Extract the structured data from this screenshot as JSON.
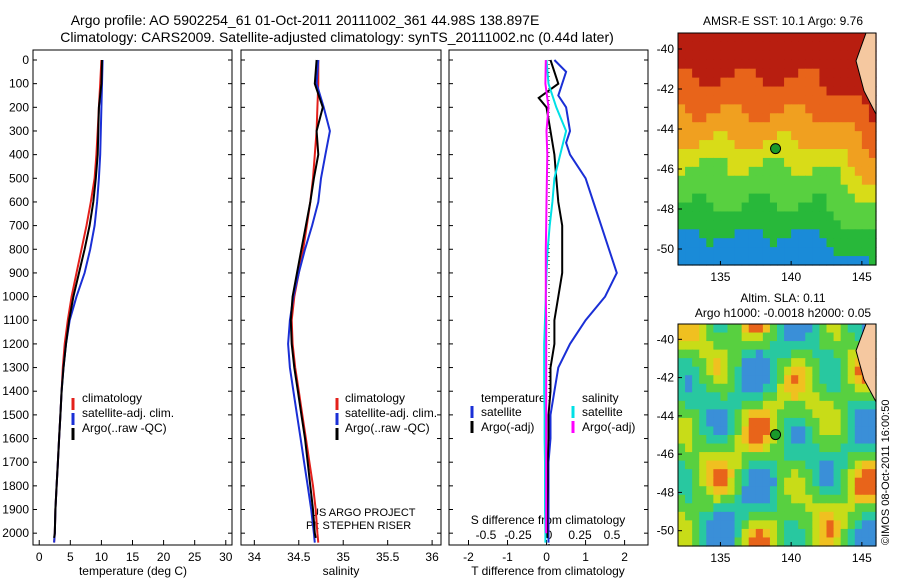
{
  "header": {
    "line1": "Argo profile: AO 5902254_61 01-Oct-2011 20111002_361 44.98S 138.897E",
    "line2": "Climatology: CARS2009. Satellite-adjusted climatology: synTS_20111002.nc (0.44d later)"
  },
  "colors": {
    "climatology": "#e3201b",
    "satellite": "#1a2fd6",
    "argo": "#000000",
    "magenta": "#ff00ff",
    "cyan": "#00e0e6"
  },
  "chart_data": [
    {
      "type": "line",
      "id": "temperature",
      "xlabel": "temperature (deg C)",
      "xlim": [
        -1,
        31
      ],
      "xticks": [
        0,
        5,
        10,
        15,
        20,
        25,
        30
      ],
      "ylim": [
        2050,
        0
      ],
      "yticks": [
        0,
        100,
        200,
        300,
        400,
        500,
        600,
        700,
        800,
        900,
        1000,
        1100,
        1200,
        1300,
        1400,
        1500,
        1600,
        1700,
        1800,
        1900,
        2000
      ],
      "legend": [
        "climatology",
        "satellite-adj. clim.",
        "Argo(..raw -QC)"
      ],
      "series": [
        {
          "name": "climatology",
          "color": "#e3201b",
          "points": [
            [
              10.0,
              0
            ],
            [
              9.8,
              100
            ],
            [
              9.6,
              200
            ],
            [
              9.4,
              300
            ],
            [
              9.2,
              400
            ],
            [
              8.9,
              500
            ],
            [
              8.3,
              600
            ],
            [
              7.6,
              700
            ],
            [
              6.8,
              800
            ],
            [
              6.0,
              900
            ],
            [
              5.2,
              1000
            ],
            [
              4.6,
              1100
            ],
            [
              4.1,
              1200
            ],
            [
              3.8,
              1300
            ],
            [
              3.6,
              1400
            ],
            [
              3.4,
              1500
            ],
            [
              3.2,
              1600
            ],
            [
              3.0,
              1700
            ],
            [
              2.8,
              1800
            ],
            [
              2.6,
              1900
            ],
            [
              2.5,
              2000
            ],
            [
              2.4,
              2040
            ]
          ]
        },
        {
          "name": "satellite-adj. clim.",
          "color": "#1a2fd6",
          "points": [
            [
              10.2,
              0
            ],
            [
              10.1,
              100
            ],
            [
              10.0,
              200
            ],
            [
              9.9,
              300
            ],
            [
              9.8,
              400
            ],
            [
              9.6,
              500
            ],
            [
              9.3,
              600
            ],
            [
              8.9,
              700
            ],
            [
              8.2,
              800
            ],
            [
              7.3,
              900
            ],
            [
              6.0,
              1000
            ],
            [
              4.9,
              1100
            ],
            [
              4.3,
              1200
            ],
            [
              3.9,
              1300
            ],
            [
              3.6,
              1400
            ],
            [
              3.4,
              1500
            ],
            [
              3.2,
              1600
            ],
            [
              3.0,
              1700
            ],
            [
              2.8,
              1800
            ],
            [
              2.6,
              1900
            ],
            [
              2.5,
              2000
            ],
            [
              2.4,
              2040
            ]
          ]
        },
        {
          "name": "Argo(..raw -QC)",
          "color": "#000000",
          "points": [
            [
              10.1,
              0
            ],
            [
              10.0,
              100
            ],
            [
              9.6,
              200
            ],
            [
              9.5,
              300
            ],
            [
              9.4,
              400
            ],
            [
              9.1,
              500
            ],
            [
              8.7,
              600
            ],
            [
              8.1,
              700
            ],
            [
              7.3,
              800
            ],
            [
              6.4,
              900
            ],
            [
              5.5,
              1000
            ],
            [
              4.8,
              1100
            ],
            [
              4.3,
              1200
            ],
            [
              3.9,
              1300
            ],
            [
              3.6,
              1400
            ],
            [
              3.4,
              1500
            ],
            [
              3.2,
              1600
            ],
            [
              3.0,
              1700
            ],
            [
              2.8,
              1800
            ],
            [
              2.6,
              1900
            ],
            [
              2.5,
              2000
            ],
            [
              2.4,
              2020
            ]
          ]
        }
      ]
    },
    {
      "type": "line",
      "id": "salinity",
      "xlabel": "salinity",
      "xlim": [
        33.85,
        36.1
      ],
      "xticks": [
        34,
        34.5,
        35,
        35.5,
        36
      ],
      "ylim": [
        2050,
        0
      ],
      "legend": [
        "climatology",
        "satellite-adj. clim.",
        "Argo(..raw -QC)"
      ],
      "annotation": [
        "US ARGO PROJECT",
        "PI: STEPHEN RISER"
      ],
      "series": [
        {
          "name": "climatology",
          "color": "#e3201b",
          "points": [
            [
              34.72,
              0
            ],
            [
              34.72,
              100
            ],
            [
              34.71,
              200
            ],
            [
              34.7,
              300
            ],
            [
              34.68,
              400
            ],
            [
              34.66,
              500
            ],
            [
              34.63,
              600
            ],
            [
              34.59,
              700
            ],
            [
              34.55,
              800
            ],
            [
              34.5,
              900
            ],
            [
              34.45,
              1000
            ],
            [
              34.42,
              1100
            ],
            [
              34.43,
              1200
            ],
            [
              34.46,
              1300
            ],
            [
              34.5,
              1400
            ],
            [
              34.54,
              1500
            ],
            [
              34.58,
              1600
            ],
            [
              34.62,
              1700
            ],
            [
              34.66,
              1800
            ],
            [
              34.69,
              1900
            ],
            [
              34.71,
              2000
            ],
            [
              34.72,
              2040
            ]
          ]
        },
        {
          "name": "satellite-adj. clim.",
          "color": "#1a2fd6",
          "points": [
            [
              34.72,
              0
            ],
            [
              34.7,
              100
            ],
            [
              34.78,
              200
            ],
            [
              34.85,
              300
            ],
            [
              34.8,
              400
            ],
            [
              34.75,
              500
            ],
            [
              34.72,
              600
            ],
            [
              34.65,
              700
            ],
            [
              34.57,
              800
            ],
            [
              34.5,
              900
            ],
            [
              34.44,
              1000
            ],
            [
              34.4,
              1100
            ],
            [
              34.38,
              1200
            ],
            [
              34.4,
              1300
            ],
            [
              34.44,
              1400
            ],
            [
              34.48,
              1500
            ],
            [
              34.52,
              1600
            ],
            [
              34.56,
              1700
            ],
            [
              34.6,
              1800
            ],
            [
              34.64,
              1900
            ],
            [
              34.67,
              2000
            ],
            [
              34.68,
              2040
            ]
          ]
        },
        {
          "name": "Argo(..raw -QC)",
          "color": "#000000",
          "points": [
            [
              34.7,
              0
            ],
            [
              34.68,
              100
            ],
            [
              34.77,
              200
            ],
            [
              34.7,
              300
            ],
            [
              34.72,
              400
            ],
            [
              34.67,
              500
            ],
            [
              34.63,
              600
            ],
            [
              34.58,
              700
            ],
            [
              34.53,
              800
            ],
            [
              34.48,
              900
            ],
            [
              34.43,
              1000
            ],
            [
              34.41,
              1100
            ],
            [
              34.42,
              1200
            ],
            [
              34.45,
              1300
            ],
            [
              34.49,
              1400
            ],
            [
              34.53,
              1500
            ],
            [
              34.57,
              1600
            ],
            [
              34.6,
              1700
            ],
            [
              34.63,
              1800
            ],
            [
              34.66,
              1900
            ],
            [
              34.68,
              2000
            ],
            [
              34.69,
              2020
            ]
          ]
        }
      ]
    },
    {
      "type": "line",
      "id": "differences",
      "xlabel": "T difference from climatology",
      "xlabel_top": "S difference from climatology",
      "xlim": [
        -2.5,
        2.6
      ],
      "xticks": [
        -2,
        -1,
        0,
        1,
        2
      ],
      "sticks_label": [
        "-0.5",
        "-0.25",
        "0",
        "0.25",
        "0.5"
      ],
      "ylim": [
        2050,
        0
      ],
      "legend_left_title": "temperature",
      "legend_right_title": "salinity",
      "legend_left": [
        "satellite",
        "Argo(-adj)"
      ],
      "legend_right": [
        "satellite",
        "Argo(-adj)"
      ],
      "series": [
        {
          "name": "temperature satellite",
          "color": "#1a2fd6",
          "points": [
            [
              0.2,
              0
            ],
            [
              0.5,
              50
            ],
            [
              0.4,
              100
            ],
            [
              0.3,
              150
            ],
            [
              0.5,
              200
            ],
            [
              0.6,
              300
            ],
            [
              0.5,
              350
            ],
            [
              0.6,
              400
            ],
            [
              1.0,
              500
            ],
            [
              1.2,
              600
            ],
            [
              1.4,
              700
            ],
            [
              1.6,
              800
            ],
            [
              1.8,
              900
            ],
            [
              1.5,
              1000
            ],
            [
              1.0,
              1100
            ],
            [
              0.6,
              1200
            ],
            [
              0.3,
              1300
            ],
            [
              0.2,
              1400
            ],
            [
              0.1,
              1500
            ],
            [
              0.1,
              1600
            ],
            [
              0.05,
              1700
            ],
            [
              0.05,
              1800
            ],
            [
              0.05,
              1900
            ],
            [
              0.05,
              2000
            ],
            [
              0.05,
              2040
            ]
          ]
        },
        {
          "name": "temperature Argo(-adj)",
          "color": "#000000",
          "points": [
            [
              0.1,
              0
            ],
            [
              0.3,
              100
            ],
            [
              -0.2,
              160
            ],
            [
              0.0,
              200
            ],
            [
              0.1,
              300
            ],
            [
              0.2,
              400
            ],
            [
              0.25,
              500
            ],
            [
              0.3,
              600
            ],
            [
              0.4,
              700
            ],
            [
              0.4,
              800
            ],
            [
              0.4,
              900
            ],
            [
              0.3,
              1000
            ],
            [
              0.2,
              1100
            ],
            [
              0.2,
              1200
            ],
            [
              0.1,
              1300
            ],
            [
              0.1,
              1400
            ],
            [
              0.05,
              1500
            ],
            [
              0.05,
              1600
            ],
            [
              0.03,
              1700
            ],
            [
              0.03,
              1800
            ],
            [
              0.02,
              1900
            ],
            [
              0.02,
              2000
            ],
            [
              0.02,
              2020
            ]
          ]
        },
        {
          "name": "salinity satellite",
          "color": "#00e0e6",
          "points": [
            [
              0.0,
              0
            ],
            [
              0.05,
              100
            ],
            [
              0.25,
              200
            ],
            [
              0.5,
              300
            ],
            [
              0.35,
              400
            ],
            [
              0.2,
              500
            ],
            [
              0.15,
              600
            ],
            [
              0.08,
              700
            ],
            [
              0.03,
              800
            ],
            [
              0.0,
              900
            ],
            [
              -0.02,
              1000
            ],
            [
              -0.04,
              1100
            ],
            [
              -0.06,
              1200
            ],
            [
              -0.06,
              1300
            ],
            [
              -0.06,
              1400
            ],
            [
              -0.05,
              1500
            ],
            [
              -0.05,
              1600
            ],
            [
              -0.04,
              1700
            ],
            [
              -0.04,
              1800
            ],
            [
              -0.04,
              1900
            ],
            [
              -0.03,
              2000
            ],
            [
              -0.03,
              2040
            ]
          ]
        },
        {
          "name": "salinity Argo(-adj)",
          "color": "#ff00ff",
          "points": [
            [
              -0.02,
              0
            ],
            [
              -0.03,
              100
            ],
            [
              0.05,
              200
            ],
            [
              0.0,
              300
            ],
            [
              0.02,
              400
            ],
            [
              0.01,
              500
            ],
            [
              0.0,
              600
            ],
            [
              -0.01,
              700
            ],
            [
              -0.02,
              800
            ],
            [
              -0.02,
              900
            ],
            [
              -0.02,
              1000
            ],
            [
              -0.01,
              1100
            ],
            [
              -0.01,
              1200
            ],
            [
              -0.01,
              1300
            ],
            [
              -0.01,
              1400
            ],
            [
              -0.01,
              1500
            ],
            [
              -0.01,
              1600
            ],
            [
              -0.01,
              1700
            ],
            [
              -0.01,
              1800
            ],
            [
              -0.01,
              1900
            ],
            [
              -0.01,
              2000
            ]
          ]
        }
      ]
    },
    {
      "type": "heatmap",
      "id": "sst-map",
      "title": "AMSR-E SST: 10.1  Argo: 9.76",
      "xticks": [
        135,
        140,
        145
      ],
      "yticks": [
        -40,
        -42,
        -44,
        -46,
        -48,
        -50
      ],
      "xlim": [
        132,
        146
      ],
      "ylim": [
        -50.8,
        -39.2
      ],
      "marker": [
        138.897,
        -44.98
      ]
    },
    {
      "type": "heatmap",
      "id": "sla-map",
      "title_line1": "Altim. SLA: 0.11",
      "title_line2": "Argo h1000: -0.0018 h2000: 0.05",
      "xticks": [
        135,
        140,
        145
      ],
      "yticks": [
        -40,
        -42,
        -44,
        -46,
        -48,
        -50
      ],
      "xlim": [
        132,
        146
      ],
      "ylim": [
        -50.8,
        -39.2
      ],
      "marker": [
        138.897,
        -44.98
      ]
    }
  ],
  "side_label": "©IMOS 08-Oct-2011 16:00:50"
}
